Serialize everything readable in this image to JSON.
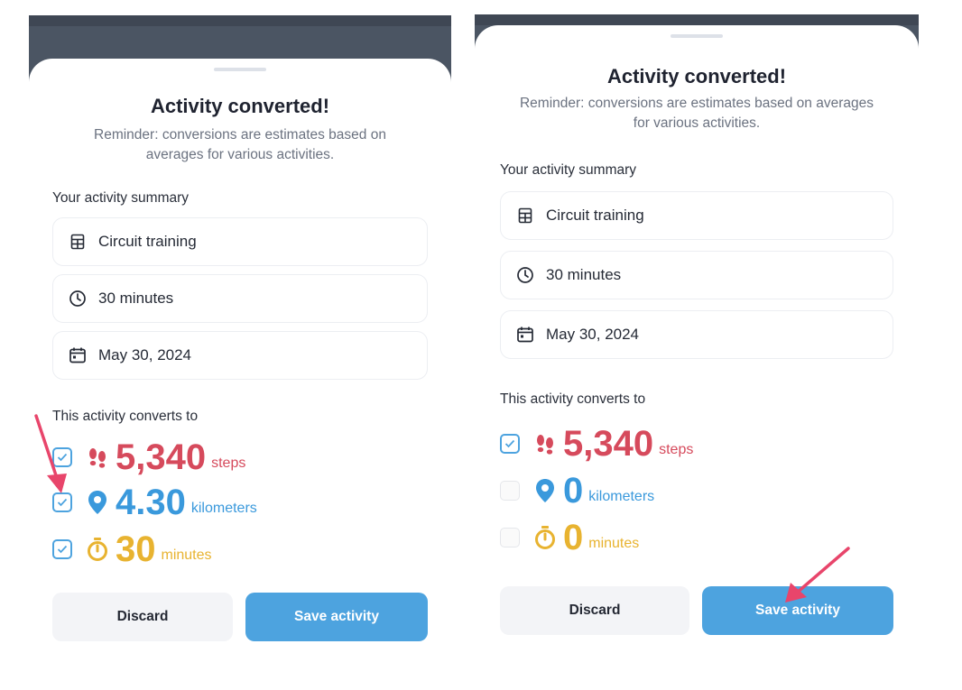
{
  "screens": [
    {
      "title": "Activity converted!",
      "reminder": "Reminder: conversions are estimates based on averages for various activities.",
      "summary_label": "Your activity summary",
      "summary": {
        "activity": "Circuit training",
        "duration": "30 minutes",
        "date": "May 30, 2024"
      },
      "converts_label": "This activity converts to",
      "conversions": [
        {
          "value": "5,340",
          "unit": "steps",
          "checked": true
        },
        {
          "value": "4.30",
          "unit": "kilometers",
          "checked": true
        },
        {
          "value": "30",
          "unit": "minutes",
          "checked": true
        }
      ],
      "discard_label": "Discard",
      "save_label": "Save activity"
    },
    {
      "title": "Activity converted!",
      "reminder": "Reminder: conversions are estimates based on averages for various activities.",
      "summary_label": "Your activity summary",
      "summary": {
        "activity": "Circuit training",
        "duration": "30 minutes",
        "date": "May 30, 2024"
      },
      "converts_label": "This activity converts to",
      "conversions": [
        {
          "value": "5,340",
          "unit": "steps",
          "checked": true
        },
        {
          "value": "0",
          "unit": "kilometers",
          "checked": false
        },
        {
          "value": "0",
          "unit": "minutes",
          "checked": false
        }
      ],
      "discard_label": "Discard",
      "save_label": "Save activity"
    }
  ],
  "colors": {
    "steps": "#d64a5c",
    "kilometers": "#3a99dc",
    "minutes": "#e8b330",
    "primary": "#4da3df",
    "annotation_arrow": "#e8456b"
  },
  "icons": {
    "activity": "calculator-icon",
    "duration": "clock-icon",
    "date": "calendar-icon",
    "steps": "footprints-icon",
    "kilometers": "map-pin-icon",
    "minutes": "stopwatch-icon",
    "checkbox": "checkmark-icon"
  }
}
